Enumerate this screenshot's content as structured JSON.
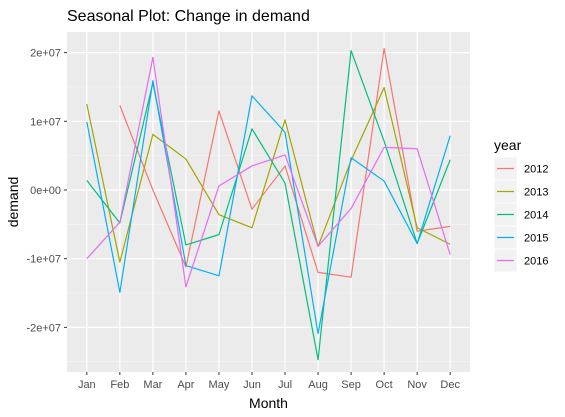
{
  "chart_data": {
    "type": "line",
    "title": "Seasonal Plot: Change in demand",
    "xlabel": "Month",
    "ylabel": "demand",
    "categories": [
      "Jan",
      "Feb",
      "Mar",
      "Apr",
      "May",
      "Jun",
      "Jul",
      "Aug",
      "Sep",
      "Oct",
      "Nov",
      "Dec"
    ],
    "ylim": [
      -26500000,
      23000000
    ],
    "yticks": [
      -20000000,
      -10000000,
      0,
      10000000,
      20000000
    ],
    "ytick_labels": [
      "-2e+07",
      "-1e+07",
      "0e+00",
      "1e+07",
      "2e+07"
    ],
    "grid": true,
    "legend_title": "year",
    "legend_position": "right",
    "series": [
      {
        "name": "2012",
        "color": "#F8766D",
        "values": [
          null,
          12300000,
          0,
          -11200000,
          11500000,
          -2800000,
          3500000,
          -12000000,
          -12700000,
          20600000,
          -6000000,
          -5300000
        ]
      },
      {
        "name": "2013",
        "color": "#A3A500",
        "values": [
          12500000,
          -10500000,
          8100000,
          4500000,
          -3600000,
          -5500000,
          10200000,
          -8200000,
          4300000,
          14900000,
          -5500000,
          -7900000
        ]
      },
      {
        "name": "2014",
        "color": "#00BF7D",
        "values": [
          1400000,
          -4800000,
          15600000,
          -8000000,
          -6500000,
          8900000,
          1000000,
          -24700000,
          20300000,
          7100000,
          -7800000,
          4400000
        ]
      },
      {
        "name": "2015",
        "color": "#00B0F6",
        "values": [
          9900000,
          -14900000,
          15900000,
          -11000000,
          -12500000,
          13700000,
          8400000,
          -20900000,
          4700000,
          1300000,
          -7800000,
          7900000
        ]
      },
      {
        "name": "2016",
        "color": "#E76BF3",
        "values": [
          -10000000,
          -4700000,
          19300000,
          -14100000,
          600000,
          3500000,
          5100000,
          -8200000,
          -2700000,
          6200000,
          6000000,
          -9400000
        ]
      }
    ]
  }
}
